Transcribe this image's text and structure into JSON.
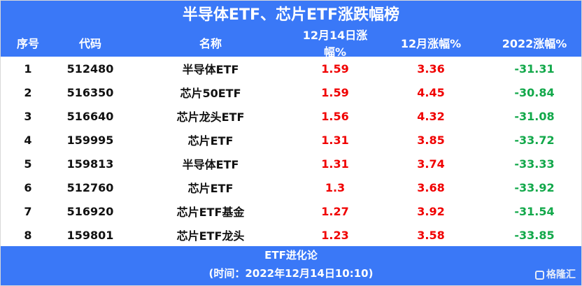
{
  "title": "半导体ETF、芯片ETF涨跌幅榜",
  "columns": [
    "序号",
    "代码",
    "名称",
    "12月14日涨幅%",
    "12月涨幅%",
    "2022涨幅%"
  ],
  "rows": [
    [
      "1",
      "512480",
      "半导体ETF",
      "1.59",
      "3.36",
      "-31.31"
    ],
    [
      "2",
      "516350",
      "芯片50ETF",
      "1.59",
      "4.45",
      "-30.84"
    ],
    [
      "3",
      "516640",
      "芯片龙头ETF",
      "1.56",
      "4.32",
      "-31.08"
    ],
    [
      "4",
      "159995",
      "芯片ETF",
      "1.31",
      "3.85",
      "-33.72"
    ],
    [
      "5",
      "159813",
      "半导体ETF",
      "1.31",
      "3.74",
      "-33.33"
    ],
    [
      "6",
      "512760",
      "芯片ETF",
      "1.3",
      "3.68",
      "-33.92"
    ],
    [
      "7",
      "516920",
      "芯片ETF基金",
      "1.27",
      "3.92",
      "-31.54"
    ],
    [
      "8",
      "159801",
      "芯片ETF龙头",
      "1.23",
      "3.58",
      "-33.85"
    ]
  ],
  "footer": {
    "source": "ETF进化论",
    "time": "(时间：2022年12月14日10:10)"
  },
  "watermark": "格隆汇",
  "colors": {
    "header_bg": "#3a78f7",
    "positive": "#f00000",
    "negative": "#12a84a"
  }
}
